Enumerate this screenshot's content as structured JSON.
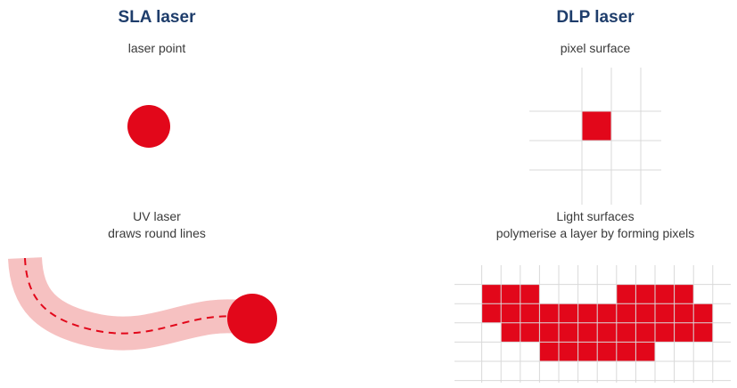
{
  "colors": {
    "title": "#1e3d6b",
    "text": "#3a3a3a",
    "red": "#e2071a",
    "pink": "#f6c1c1",
    "grid": "#d9d9d9"
  },
  "sla": {
    "title": "SLA laser",
    "point_caption": "laser point",
    "line_caption": [
      "UV laser",
      "draws round lines"
    ]
  },
  "dlp": {
    "title": "DLP laser",
    "pixel_caption": "pixel surface",
    "surface_caption": [
      "Light surfaces",
      "polymerise a layer by forming pixels"
    ],
    "single_grid": {
      "cols": 4,
      "rows": 4,
      "filled": [
        [
          1,
          1
        ]
      ]
    },
    "layer_grid": {
      "cols": 12,
      "rows": 5,
      "filled_rows": [
        [
          1,
          2,
          3,
          8,
          9,
          10,
          11
        ],
        [
          1,
          2,
          3,
          4,
          5,
          6,
          7,
          8,
          9,
          10,
          11,
          12
        ],
        [
          2,
          3,
          4,
          5,
          6,
          7,
          8,
          9,
          10,
          11,
          12
        ],
        [
          4,
          5,
          6,
          7,
          8,
          9
        ]
      ]
    }
  }
}
